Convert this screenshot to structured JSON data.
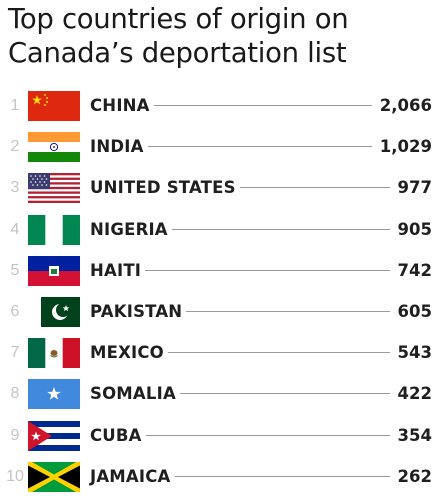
{
  "chart_data": {
    "type": "table",
    "title": "Top countries of origin on\nCanada’s deportation list",
    "rows": [
      {
        "rank": "1",
        "country": "CHINA",
        "value": "2,066",
        "flag": "china-flag-icon"
      },
      {
        "rank": "2",
        "country": "INDIA",
        "value": "1,029",
        "flag": "india-flag-icon"
      },
      {
        "rank": "3",
        "country": "UNITED STATES",
        "value": "977",
        "flag": "usa-flag-icon"
      },
      {
        "rank": "4",
        "country": "NIGERIA",
        "value": "905",
        "flag": "nigeria-flag-icon"
      },
      {
        "rank": "5",
        "country": "HAITI",
        "value": "742",
        "flag": "haiti-flag-icon"
      },
      {
        "rank": "6",
        "country": "PAKISTAN",
        "value": "605",
        "flag": "pakistan-flag-icon"
      },
      {
        "rank": "7",
        "country": "MEXICO",
        "value": "543",
        "flag": "mexico-flag-icon"
      },
      {
        "rank": "8",
        "country": "SOMALIA",
        "value": "422",
        "flag": "somalia-flag-icon"
      },
      {
        "rank": "9",
        "country": "CUBA",
        "value": "354",
        "flag": "cuba-flag-icon"
      },
      {
        "rank": "10",
        "country": "JAMAICA",
        "value": "262",
        "flag": "jamaica-flag-icon"
      }
    ]
  }
}
